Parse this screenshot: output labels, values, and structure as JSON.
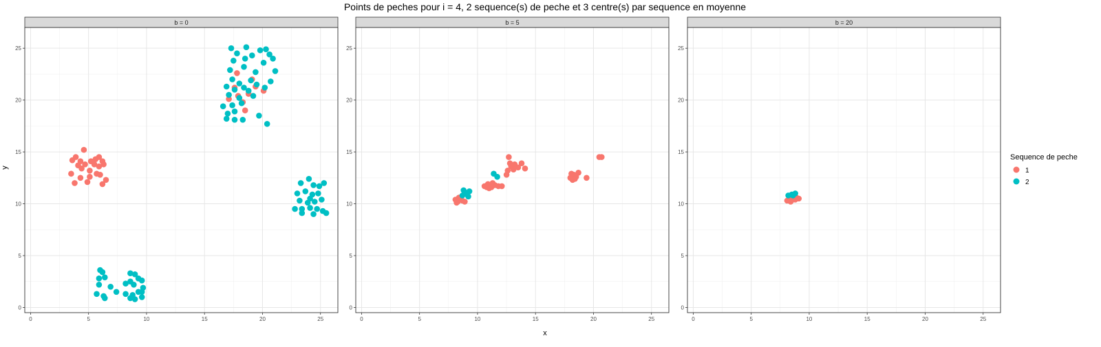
{
  "chart_data": {
    "type": "scatter",
    "title": "Points de peches pour i = 4, 2 sequence(s) de peche et 3 centre(s) par sequence en moyenne",
    "xlabel": "x",
    "ylabel": "y",
    "xlim": [
      -0.5,
      26.5
    ],
    "ylim": [
      -0.5,
      27
    ],
    "x_ticks": [
      0,
      5,
      10,
      15,
      20,
      25
    ],
    "y_ticks": [
      0,
      5,
      10,
      15,
      20,
      25
    ],
    "grid": true,
    "legend": {
      "title": "Sequence de peche",
      "position": "right",
      "entries": [
        {
          "label": "1",
          "color": "#F8766D"
        },
        {
          "label": "2",
          "color": "#00BFC4"
        }
      ]
    },
    "panels": [
      {
        "label": "b = 0",
        "series": [
          {
            "name": "1",
            "color": "#F8766D",
            "points": [
              [
                3.6,
                14.2
              ],
              [
                3.9,
                14.5
              ],
              [
                4.3,
                14.1
              ],
              [
                4.6,
                15.2
              ],
              [
                4.1,
                13.7
              ],
              [
                4.7,
                13.8
              ],
              [
                5.2,
                14.1
              ],
              [
                5.6,
                14.3
              ],
              [
                5.9,
                14.5
              ],
              [
                6.2,
                14.1
              ],
              [
                5.5,
                13.8
              ],
              [
                5.9,
                13.6
              ],
              [
                6.3,
                13.8
              ],
              [
                5.1,
                13.2
              ],
              [
                5.7,
                12.9
              ],
              [
                3.5,
                12.9
              ],
              [
                4.3,
                12.5
              ],
              [
                5.1,
                12.6
              ],
              [
                6.0,
                12.8
              ],
              [
                6.5,
                12.3
              ],
              [
                3.8,
                12.0
              ],
              [
                4.9,
                12.1
              ],
              [
                6.2,
                11.9
              ],
              [
                4.4,
                13.4
              ],
              [
                17.1,
                20.1
              ],
              [
                17.6,
                21.2
              ],
              [
                18.3,
                19.8
              ],
              [
                18.8,
                20.6
              ],
              [
                19.4,
                21.3
              ],
              [
                20.1,
                20.9
              ],
              [
                17.8,
                22.6
              ],
              [
                18.5,
                19.0
              ],
              [
                19.1,
                22.0
              ],
              [
                17.9,
                20.4
              ]
            ]
          },
          {
            "name": "2",
            "color": "#00BFC4",
            "points": [
              [
                17.3,
                25.0
              ],
              [
                18.6,
                25.1
              ],
              [
                19.8,
                24.8
              ],
              [
                20.3,
                24.9
              ],
              [
                17.8,
                24.5
              ],
              [
                19.1,
                24.3
              ],
              [
                20.6,
                24.4
              ],
              [
                17.5,
                23.8
              ],
              [
                18.5,
                24.0
              ],
              [
                20.1,
                23.6
              ],
              [
                20.9,
                24.0
              ],
              [
                17.2,
                22.9
              ],
              [
                18.4,
                23.2
              ],
              [
                19.4,
                22.7
              ],
              [
                21.1,
                22.8
              ],
              [
                17.4,
                22.0
              ],
              [
                18.0,
                21.6
              ],
              [
                19.0,
                21.9
              ],
              [
                20.7,
                21.8
              ],
              [
                16.9,
                21.3
              ],
              [
                17.6,
                21.0
              ],
              [
                18.4,
                21.2
              ],
              [
                19.5,
                21.5
              ],
              [
                20.2,
                21.2
              ],
              [
                17.1,
                20.5
              ],
              [
                18.0,
                20.2
              ],
              [
                19.2,
                20.4
              ],
              [
                16.6,
                19.4
              ],
              [
                17.4,
                19.5
              ],
              [
                18.2,
                19.7
              ],
              [
                17.0,
                18.7
              ],
              [
                17.6,
                18.9
              ],
              [
                19.7,
                18.5
              ],
              [
                16.9,
                18.2
              ],
              [
                17.6,
                18.1
              ],
              [
                18.3,
                18.1
              ],
              [
                20.4,
                17.7
              ],
              [
                18.8,
                20.9
              ],
              [
                23.3,
                12.0
              ],
              [
                24.0,
                12.4
              ],
              [
                24.4,
                11.8
              ],
              [
                24.9,
                11.7
              ],
              [
                25.3,
                12.0
              ],
              [
                23.0,
                11.0
              ],
              [
                23.7,
                11.2
              ],
              [
                24.3,
                10.9
              ],
              [
                24.8,
                11.0
              ],
              [
                23.2,
                10.3
              ],
              [
                23.9,
                10.1
              ],
              [
                24.5,
                10.2
              ],
              [
                25.1,
                10.4
              ],
              [
                23.4,
                9.5
              ],
              [
                24.1,
                9.6
              ],
              [
                24.7,
                9.5
              ],
              [
                25.2,
                9.3
              ],
              [
                22.8,
                9.5
              ],
              [
                23.4,
                9.1
              ],
              [
                24.4,
                9.0
              ],
              [
                25.5,
                9.1
              ],
              [
                24.1,
                10.5
              ],
              [
                6.0,
                3.6
              ],
              [
                6.2,
                3.4
              ],
              [
                8.6,
                3.3
              ],
              [
                9.0,
                3.2
              ],
              [
                5.9,
                2.8
              ],
              [
                6.4,
                2.9
              ],
              [
                8.2,
                2.3
              ],
              [
                8.6,
                2.5
              ],
              [
                9.3,
                2.8
              ],
              [
                9.6,
                2.6
              ],
              [
                5.9,
                2.2
              ],
              [
                6.9,
                2.0
              ],
              [
                8.9,
                2.2
              ],
              [
                9.7,
                1.9
              ],
              [
                9.6,
                1.5
              ],
              [
                5.7,
                1.3
              ],
              [
                6.3,
                1.1
              ],
              [
                7.4,
                1.5
              ],
              [
                8.2,
                1.3
              ],
              [
                8.8,
                1.2
              ],
              [
                9.3,
                1.5
              ],
              [
                6.4,
                0.9
              ],
              [
                8.6,
                0.9
              ],
              [
                9.0,
                0.8
              ],
              [
                9.6,
                1.0
              ]
            ]
          }
        ]
      },
      {
        "label": "b = 5",
        "series": [
          {
            "name": "1",
            "color": "#F8766D",
            "points": [
              [
                8.1,
                10.4
              ],
              [
                8.3,
                10.2
              ],
              [
                8.5,
                10.5
              ],
              [
                8.7,
                10.3
              ],
              [
                8.4,
                10.6
              ],
              [
                8.9,
                10.2
              ],
              [
                8.2,
                10.1
              ],
              [
                10.6,
                11.7
              ],
              [
                10.9,
                11.9
              ],
              [
                11.2,
                11.6
              ],
              [
                11.5,
                11.8
              ],
              [
                11.8,
                11.7
              ],
              [
                11.0,
                11.5
              ],
              [
                11.3,
                12.0
              ],
              [
                10.8,
                11.6
              ],
              [
                12.1,
                11.7
              ],
              [
                12.6,
                13.2
              ],
              [
                12.9,
                13.6
              ],
              [
                13.2,
                13.8
              ],
              [
                13.5,
                13.5
              ],
              [
                13.8,
                13.9
              ],
              [
                12.8,
                13.9
              ],
              [
                13.1,
                13.3
              ],
              [
                12.7,
                14.5
              ],
              [
                14.1,
                13.4
              ],
              [
                12.5,
                12.8
              ],
              [
                18.0,
                12.5
              ],
              [
                18.3,
                12.8
              ],
              [
                18.5,
                12.6
              ],
              [
                18.2,
                12.3
              ],
              [
                18.7,
                13.0
              ],
              [
                18.1,
                12.9
              ],
              [
                18.4,
                12.4
              ],
              [
                19.4,
                12.5
              ],
              [
                20.5,
                14.5
              ],
              [
                20.7,
                14.5
              ]
            ]
          },
          {
            "name": "2",
            "color": "#00BFC4",
            "points": [
              [
                8.7,
                10.8
              ],
              [
                8.9,
                11.1
              ],
              [
                9.1,
                10.9
              ],
              [
                9.3,
                11.2
              ],
              [
                8.8,
                11.3
              ],
              [
                9.2,
                10.7
              ],
              [
                9.0,
                11.0
              ],
              [
                11.4,
                12.9
              ],
              [
                11.7,
                12.6
              ]
            ]
          }
        ]
      },
      {
        "label": "b = 20",
        "series": [
          {
            "name": "1",
            "color": "#F8766D",
            "points": [
              [
                8.1,
                10.3
              ],
              [
                8.3,
                10.5
              ],
              [
                8.6,
                10.4
              ],
              [
                8.9,
                10.6
              ],
              [
                9.1,
                10.5
              ],
              [
                8.4,
                10.2
              ],
              [
                8.8,
                10.4
              ]
            ]
          },
          {
            "name": "2",
            "color": "#00BFC4",
            "points": [
              [
                8.2,
                10.8
              ],
              [
                8.5,
                10.9
              ],
              [
                8.8,
                11.0
              ],
              [
                8.6,
                10.8
              ]
            ]
          }
        ]
      }
    ]
  }
}
